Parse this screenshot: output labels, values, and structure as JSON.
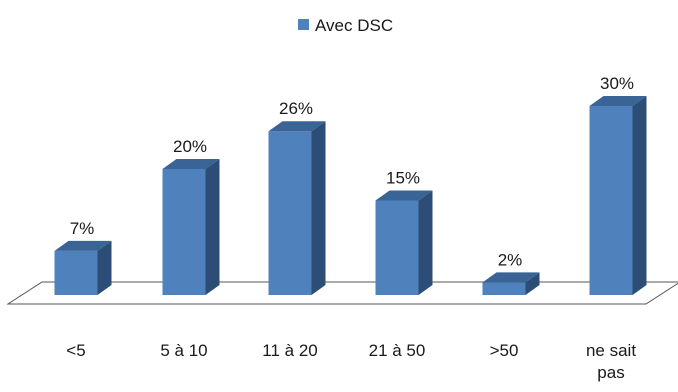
{
  "chart_data": {
    "type": "bar",
    "categories": [
      "<5",
      "5 à 10",
      "11 à 20",
      "21 à 50",
      ">50",
      "ne sait pas"
    ],
    "series": [
      {
        "name": "Avec DSC",
        "values": [
          7,
          20,
          26,
          15,
          2,
          30
        ]
      }
    ],
    "data_labels": [
      "7%",
      "20%",
      "26%",
      "15%",
      "2%",
      "30%"
    ],
    "value_unit": "%",
    "legend": {
      "placement": "top-center"
    },
    "grid": false,
    "three_d": true,
    "colors": {
      "front": "#4F81BD",
      "top": "#3A6496",
      "side": "#2C4D75",
      "floor": "#555555"
    }
  }
}
